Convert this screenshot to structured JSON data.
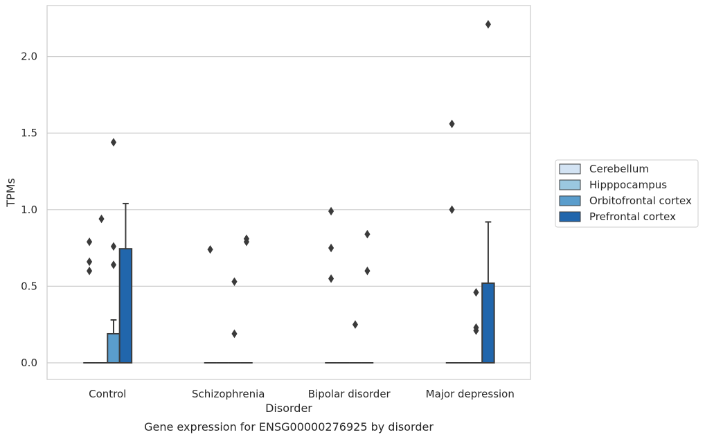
{
  "chart_data": {
    "type": "box",
    "title": "",
    "caption": "Gene expression for ENSG00000276925 by disorder",
    "xlabel": "Disorder",
    "ylabel": "TPMs",
    "ylim": [
      -0.1,
      2.33
    ],
    "yticks": [
      "0.0",
      "0.5",
      "1.0",
      "1.5",
      "2.0"
    ],
    "ytick_values": [
      0,
      0.5,
      1.0,
      1.5,
      2.0
    ],
    "grid": "horizontal",
    "legend_position": "right",
    "categories": [
      "Control",
      "Schizophrenia",
      "Bipolar disorder",
      "Major depression"
    ],
    "series": [
      {
        "name": "Cerebellum",
        "color": "#d3e3f3",
        "boxes": [
          {
            "q1": 0,
            "median": 0,
            "q3": 0,
            "whisker_low": 0,
            "whisker_high": 0,
            "outliers": [
              0.6,
              0.66,
              0.79
            ]
          },
          {
            "q1": 0,
            "median": 0,
            "q3": 0,
            "whisker_low": 0,
            "whisker_high": 0,
            "outliers": [
              0.74
            ]
          },
          {
            "q1": 0,
            "median": 0,
            "q3": 0,
            "whisker_low": 0,
            "whisker_high": 0,
            "outliers": [
              0.55,
              0.75,
              0.99
            ]
          },
          {
            "q1": 0,
            "median": 0,
            "q3": 0,
            "whisker_low": 0,
            "whisker_high": 0,
            "outliers": [
              1.0,
              1.56
            ]
          }
        ]
      },
      {
        "name": "Hipppocampus",
        "color": "#9ac8e0",
        "boxes": [
          {
            "q1": 0,
            "median": 0,
            "q3": 0,
            "whisker_low": 0,
            "whisker_high": 0,
            "outliers": [
              0.94
            ]
          },
          {
            "q1": 0,
            "median": 0,
            "q3": 0,
            "whisker_low": 0,
            "whisker_high": 0,
            "outliers": []
          },
          {
            "q1": 0,
            "median": 0,
            "q3": 0,
            "whisker_low": 0,
            "whisker_high": 0,
            "outliers": []
          },
          {
            "q1": 0,
            "median": 0,
            "q3": 0,
            "whisker_low": 0,
            "whisker_high": 0,
            "outliers": []
          }
        ]
      },
      {
        "name": "Orbitofrontal cortex",
        "color": "#5a9dcc",
        "boxes": [
          {
            "q1": 0,
            "median": 0,
            "q3": 0.19,
            "whisker_low": 0,
            "whisker_high": 0.28,
            "outliers": [
              0.64,
              0.76,
              1.44
            ]
          },
          {
            "q1": 0,
            "median": 0,
            "q3": 0,
            "whisker_low": 0,
            "whisker_high": 0,
            "outliers": [
              0.19,
              0.53
            ]
          },
          {
            "q1": 0,
            "median": 0,
            "q3": 0,
            "whisker_low": 0,
            "whisker_high": 0,
            "outliers": [
              0.25
            ]
          },
          {
            "q1": 0,
            "median": 0,
            "q3": 0,
            "whisker_low": 0,
            "whisker_high": 0,
            "outliers": [
              0.21,
              0.23,
              0.46
            ]
          }
        ]
      },
      {
        "name": "Prefrontal cortex",
        "color": "#2166ac",
        "boxes": [
          {
            "q1": 0,
            "median": 0,
            "q3": 0.745,
            "whisker_low": 0,
            "whisker_high": 1.04,
            "outliers": []
          },
          {
            "q1": 0,
            "median": 0,
            "q3": 0,
            "whisker_low": 0,
            "whisker_high": 0,
            "outliers": [
              0.79,
              0.81
            ]
          },
          {
            "q1": 0,
            "median": 0,
            "q3": 0,
            "whisker_low": 0,
            "whisker_high": 0,
            "outliers": [
              0.6,
              0.84
            ]
          },
          {
            "q1": 0,
            "median": 0,
            "q3": 0.52,
            "whisker_low": 0,
            "whisker_high": 0.92,
            "outliers": [
              2.21
            ]
          }
        ]
      }
    ]
  }
}
